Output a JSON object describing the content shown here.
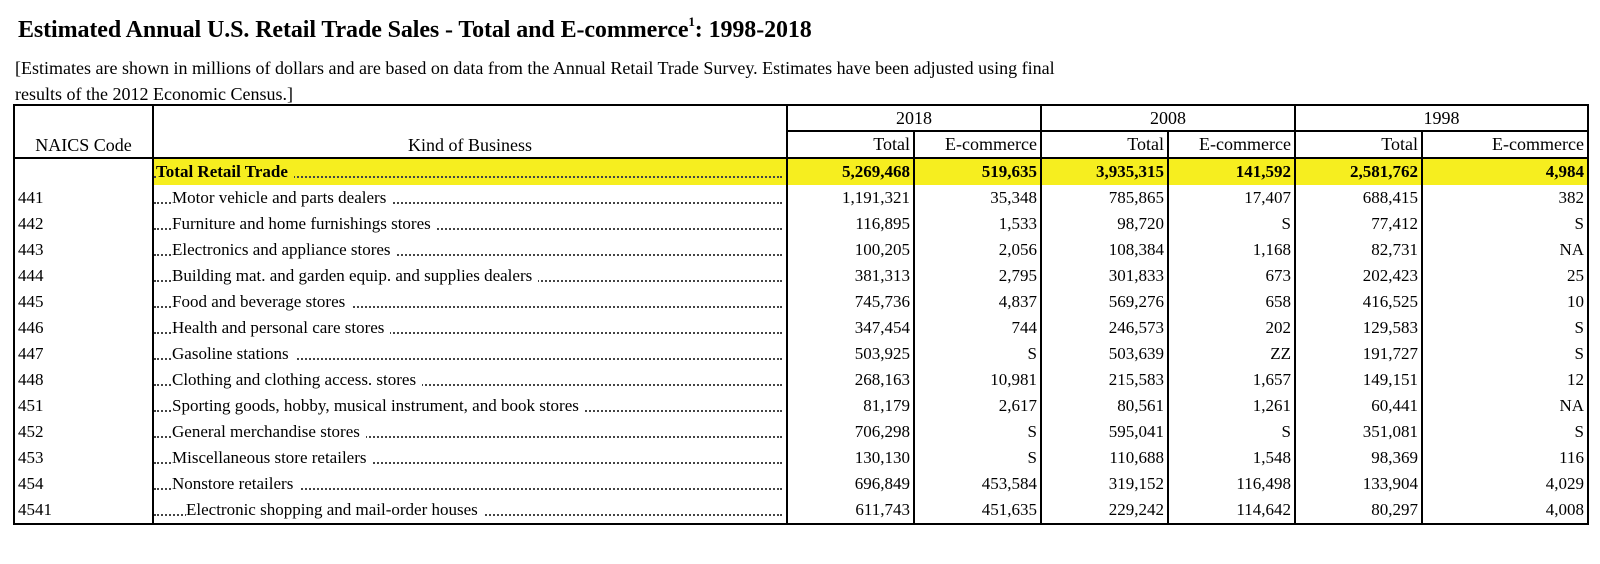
{
  "title": {
    "text": "Estimated Annual U.S. Retail Trade Sales - Total and E-commerce",
    "footnote": "1",
    "years_range": ": 1998-2018"
  },
  "subtitle": "[Estimates are shown in millions of dollars and are based on data from the Annual Retail Trade Survey. Estimates have been adjusted using final results of the 2012 Economic Census.]",
  "headers": {
    "naics_code": "NAICS Code",
    "kind_of_business": "Kind of Business",
    "years": [
      "2018",
      "2008",
      "1998"
    ],
    "total": "Total",
    "ecommerce": "E-commerce"
  },
  "highlight_color": "#f6ee1f",
  "rows": [
    {
      "code": "",
      "kind": "Total Retail Trade",
      "t2018": "5,269,468",
      "e2018": "519,635",
      "t2008": "3,935,315",
      "e2008": "141,592",
      "t1998": "2,581,762",
      "e1998": "4,984"
    },
    {
      "code": "441",
      "kind": "Motor vehicle and parts dealers",
      "t2018": "1,191,321",
      "e2018": "35,348",
      "t2008": "785,865",
      "e2008": "17,407",
      "t1998": "688,415",
      "e1998": "382"
    },
    {
      "code": "442",
      "kind": "Furniture and home furnishings stores",
      "t2018": "116,895",
      "e2018": "1,533",
      "t2008": "98,720",
      "e2008": "S",
      "t1998": "77,412",
      "e1998": "S"
    },
    {
      "code": "443",
      "kind": "Electronics and appliance stores",
      "t2018": "100,205",
      "e2018": "2,056",
      "t2008": "108,384",
      "e2008": "1,168",
      "t1998": "82,731",
      "e1998": "NA"
    },
    {
      "code": "444",
      "kind": "Building mat. and garden equip. and supplies dealers",
      "t2018": "381,313",
      "e2018": "2,795",
      "t2008": "301,833",
      "e2008": "673",
      "t1998": "202,423",
      "e1998": "25"
    },
    {
      "code": "445",
      "kind": "Food and beverage stores",
      "t2018": "745,736",
      "e2018": "4,837",
      "t2008": "569,276",
      "e2008": "658",
      "t1998": "416,525",
      "e1998": "10"
    },
    {
      "code": "446",
      "kind": "Health and personal care stores",
      "t2018": "347,454",
      "e2018": "744",
      "t2008": "246,573",
      "e2008": "202",
      "t1998": "129,583",
      "e1998": "S"
    },
    {
      "code": "447",
      "kind": "Gasoline stations",
      "t2018": "503,925",
      "e2018": "S",
      "t2008": "503,639",
      "e2008": "ZZ",
      "t1998": "191,727",
      "e1998": "S"
    },
    {
      "code": "448",
      "kind": "Clothing and clothing access. stores",
      "t2018": "268,163",
      "e2018": "10,981",
      "t2008": "215,583",
      "e2008": "1,657",
      "t1998": "149,151",
      "e1998": "12"
    },
    {
      "code": "451",
      "kind": "Sporting goods, hobby, musical instrument, and book stores",
      "t2018": "81,179",
      "e2018": "2,617",
      "t2008": "80,561",
      "e2008": "1,261",
      "t1998": "60,441",
      "e1998": "NA"
    },
    {
      "code": "452",
      "kind": "General merchandise stores",
      "t2018": "706,298",
      "e2018": "S",
      "t2008": "595,041",
      "e2008": "S",
      "t1998": "351,081",
      "e1998": "S"
    },
    {
      "code": "453",
      "kind": "Miscellaneous store retailers",
      "t2018": "130,130",
      "e2018": "S",
      "t2008": "110,688",
      "e2008": "1,548",
      "t1998": "98,369",
      "e1998": "116"
    },
    {
      "code": "454",
      "kind": "Nonstore retailers",
      "t2018": "696,849",
      "e2018": "453,584",
      "t2008": "319,152",
      "e2008": "116,498",
      "t1998": "133,904",
      "e1998": "4,029"
    },
    {
      "code": "4541",
      "kind": "Electronic shopping and mail-order houses",
      "t2018": "611,743",
      "e2018": "451,635",
      "t2008": "229,242",
      "e2008": "114,642",
      "t1998": "80,297",
      "e1998": "4,008"
    }
  ]
}
